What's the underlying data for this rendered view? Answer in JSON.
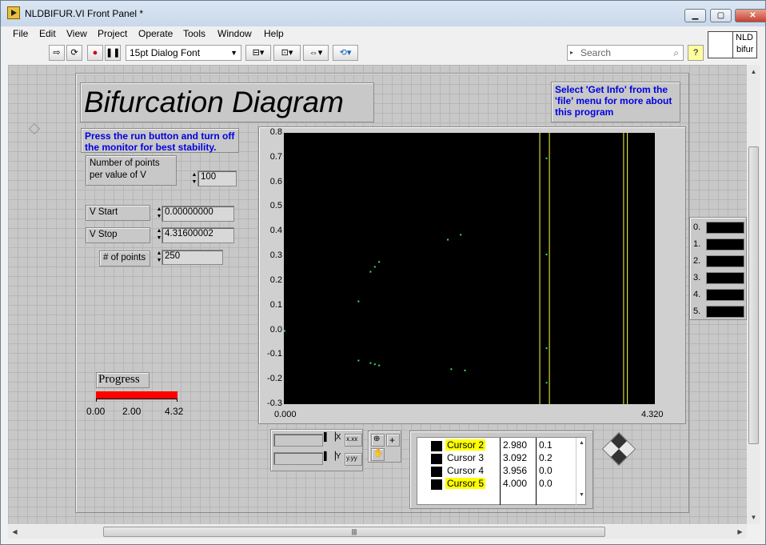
{
  "window": {
    "title": "NLDBIFUR.VI Front Panel *",
    "minimize": "▁",
    "maximize": "▢",
    "close": "✕"
  },
  "menu": [
    "File",
    "Edit",
    "View",
    "Project",
    "Operate",
    "Tools",
    "Window",
    "Help"
  ],
  "toolbar": {
    "font": "15pt Dialog Font",
    "search_placeholder": "Search"
  },
  "icon_pane": {
    "line1": "NLD",
    "line2": "bifur"
  },
  "panel": {
    "title": "Bifurcation Diagram",
    "info_note": "Select 'Get Info' from the 'file' menu for more about this program",
    "run_note": "Press the run button and turn off the monitor for best stability.",
    "points_label": "Number of points per value of V",
    "points_value": "100",
    "vstart_label": "V Start",
    "vstart_value": "0.00000000",
    "vstop_label": "V Stop",
    "vstop_value": "4.31600002",
    "npoints_label": "# of points",
    "npoints_value": "250",
    "progress_label": "Progress",
    "progress_fraction": 1.0,
    "progress_color": "#ff0000",
    "progress_ticks": [
      "0.00",
      "2.00",
      "4.32"
    ]
  },
  "chart_data": {
    "type": "scatter",
    "title": "",
    "xlabel": "",
    "ylabel": "",
    "xlim": [
      0.0,
      4.32
    ],
    "ylim": [
      -0.3,
      0.8
    ],
    "x_tick_labels": [
      "0.000",
      "4.320"
    ],
    "y_tick_labels": [
      "0.8",
      "0.7",
      "0.6",
      "0.5",
      "0.4",
      "0.3",
      "0.2",
      "0.1",
      "0.0",
      "-0.1",
      "-0.2",
      "-0.3"
    ],
    "background": "#000000",
    "point_color": "#40e060",
    "cursor_color": "#ffff40",
    "points": [
      {
        "x": 0.0,
        "y": 0.0
      },
      {
        "x": 0.86,
        "y": 0.12
      },
      {
        "x": 0.86,
        "y": -0.12
      },
      {
        "x": 1.0,
        "y": 0.24
      },
      {
        "x": 1.05,
        "y": 0.26
      },
      {
        "x": 1.1,
        "y": 0.28
      },
      {
        "x": 1.0,
        "y": -0.13
      },
      {
        "x": 1.05,
        "y": -0.135
      },
      {
        "x": 1.1,
        "y": -0.14
      },
      {
        "x": 1.9,
        "y": 0.37
      },
      {
        "x": 1.94,
        "y": -0.155
      },
      {
        "x": 2.05,
        "y": 0.39
      },
      {
        "x": 2.1,
        "y": -0.16
      },
      {
        "x": 3.05,
        "y": 0.7
      },
      {
        "x": 3.05,
        "y": 0.31
      },
      {
        "x": 3.05,
        "y": -0.07
      },
      {
        "x": 3.05,
        "y": -0.21
      }
    ],
    "cursor_lines_x": [
      2.98,
      3.092,
      3.956,
      4.0
    ]
  },
  "plot_legend": [
    "0.",
    "1.",
    "2.",
    "3.",
    "4.",
    "5."
  ],
  "cursors": [
    {
      "name": "Cursor 2",
      "x": "2.980",
      "y": "0.1",
      "highlight": true
    },
    {
      "name": "Cursor 3",
      "x": "3.092",
      "y": "0.2",
      "highlight": false
    },
    {
      "name": "Cursor 4",
      "x": "3.956",
      "y": "0.0",
      "highlight": false
    },
    {
      "name": "Cursor 5",
      "x": "4.000",
      "y": "0.0",
      "highlight": true
    }
  ],
  "scale_legend": {
    "x_format": "x.xx",
    "y_format": "y.yy",
    "x_axis": "X",
    "y_axis": "Y"
  }
}
